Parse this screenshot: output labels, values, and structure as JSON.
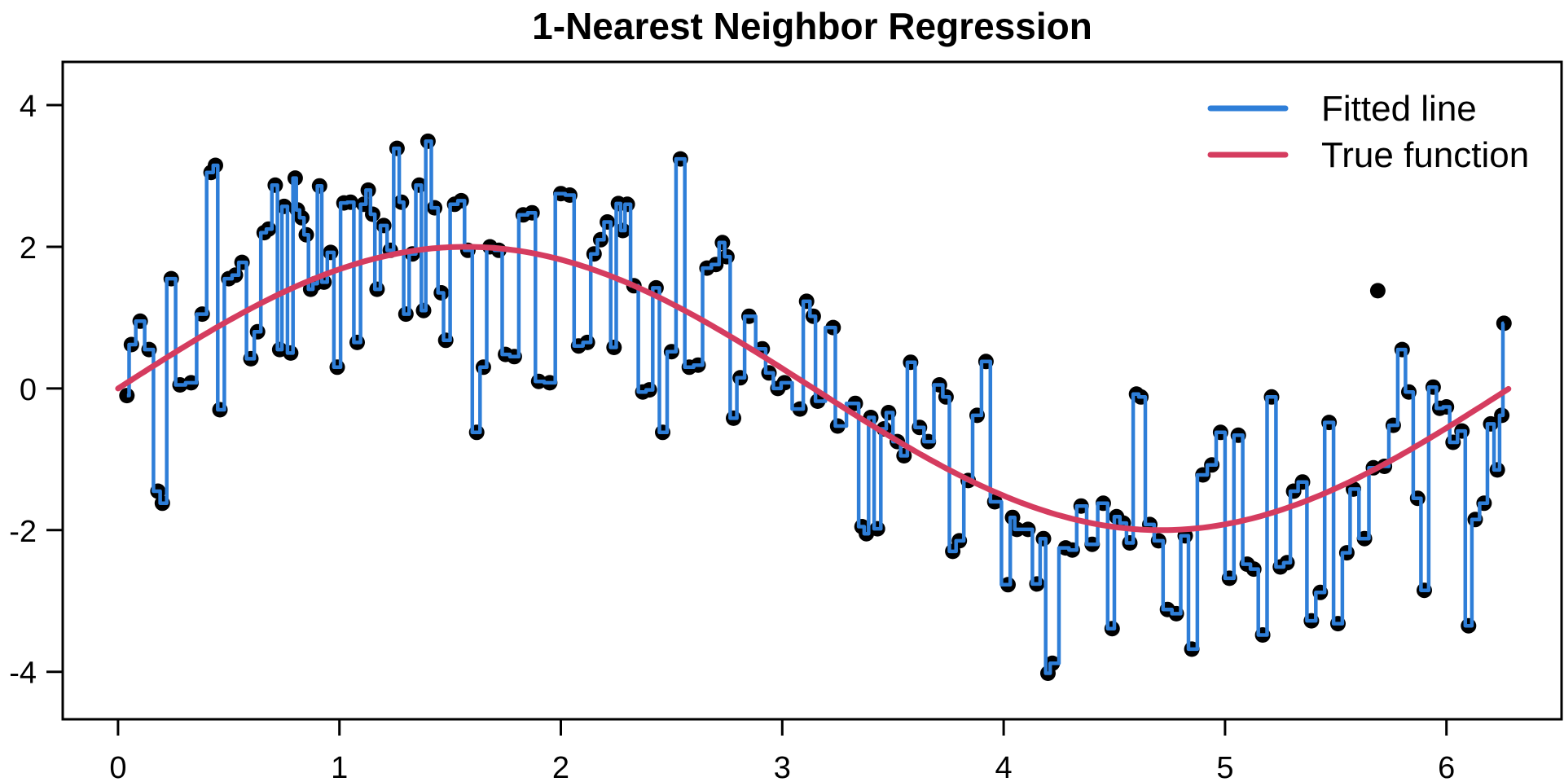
{
  "title": "1-Nearest Neighbor Regression",
  "colors": {
    "fitted_line": "#2e7ed8",
    "true_function": "#d53c5f",
    "points": "#000000",
    "axis": "#000000",
    "background": "#ffffff"
  },
  "chart_data": {
    "type": "line",
    "title": "1-Nearest Neighbor Regression",
    "xlabel": "",
    "ylabel": "",
    "xlim": [
      -0.25,
      6.52
    ],
    "ylim": [
      -4.67,
      4.61
    ],
    "x_ticks": [
      0,
      1,
      2,
      3,
      4,
      5,
      6
    ],
    "y_ticks": [
      -4,
      -2,
      0,
      2,
      4
    ],
    "grid": false,
    "legend": {
      "position": "top-right",
      "entries": [
        {
          "label": "Fitted line",
          "color": "#2e7ed8"
        },
        {
          "label": "True function",
          "color": "#d53c5f"
        }
      ]
    },
    "series": [
      {
        "name": "Training points",
        "type": "scatter",
        "color": "#000000",
        "marker_radius": 9.5,
        "points": [
          [
            0.04,
            -0.1
          ],
          [
            0.06,
            0.62
          ],
          [
            0.1,
            0.95
          ],
          [
            0.14,
            0.55
          ],
          [
            0.18,
            -1.45
          ],
          [
            0.2,
            -1.62
          ],
          [
            0.24,
            1.55
          ],
          [
            0.28,
            0.05
          ],
          [
            0.33,
            0.08
          ],
          [
            0.38,
            1.05
          ],
          [
            0.42,
            3.05
          ],
          [
            0.44,
            3.15
          ],
          [
            0.46,
            -0.3
          ],
          [
            0.5,
            1.55
          ],
          [
            0.53,
            1.6
          ],
          [
            0.56,
            1.78
          ],
          [
            0.6,
            0.42
          ],
          [
            0.63,
            0.8
          ],
          [
            0.66,
            2.2
          ],
          [
            0.68,
            2.25
          ],
          [
            0.71,
            2.87
          ],
          [
            0.73,
            0.55
          ],
          [
            0.75,
            2.57
          ],
          [
            0.78,
            0.5
          ],
          [
            0.8,
            2.97
          ],
          [
            0.81,
            2.52
          ],
          [
            0.83,
            2.41
          ],
          [
            0.85,
            2.17
          ],
          [
            0.87,
            1.4
          ],
          [
            0.89,
            1.48
          ],
          [
            0.91,
            2.86
          ],
          [
            0.93,
            1.5
          ],
          [
            0.96,
            1.92
          ],
          [
            0.99,
            0.3
          ],
          [
            1.02,
            2.62
          ],
          [
            1.05,
            2.63
          ],
          [
            1.08,
            0.65
          ],
          [
            1.11,
            2.6
          ],
          [
            1.13,
            2.8
          ],
          [
            1.15,
            2.46
          ],
          [
            1.17,
            1.4
          ],
          [
            1.2,
            2.3
          ],
          [
            1.23,
            1.95
          ],
          [
            1.26,
            3.39
          ],
          [
            1.28,
            2.63
          ],
          [
            1.3,
            1.05
          ],
          [
            1.33,
            1.9
          ],
          [
            1.36,
            2.87
          ],
          [
            1.38,
            1.1
          ],
          [
            1.4,
            3.49
          ],
          [
            1.43,
            2.55
          ],
          [
            1.46,
            1.35
          ],
          [
            1.48,
            0.68
          ],
          [
            1.52,
            2.6
          ],
          [
            1.55,
            2.65
          ],
          [
            1.58,
            1.95
          ],
          [
            1.62,
            -0.62
          ],
          [
            1.65,
            0.3
          ],
          [
            1.68,
            2.0
          ],
          [
            1.72,
            1.95
          ],
          [
            1.75,
            0.48
          ],
          [
            1.79,
            0.45
          ],
          [
            1.83,
            2.45
          ],
          [
            1.87,
            2.48
          ],
          [
            1.9,
            0.1
          ],
          [
            1.95,
            0.08
          ],
          [
            2.0,
            2.75
          ],
          [
            2.04,
            2.73
          ],
          [
            2.08,
            0.6
          ],
          [
            2.12,
            0.65
          ],
          [
            2.15,
            1.9
          ],
          [
            2.18,
            2.1
          ],
          [
            2.21,
            2.35
          ],
          [
            2.24,
            0.58
          ],
          [
            2.26,
            2.61
          ],
          [
            2.28,
            2.23
          ],
          [
            2.3,
            2.6
          ],
          [
            2.33,
            1.45
          ],
          [
            2.37,
            -0.05
          ],
          [
            2.4,
            -0.02
          ],
          [
            2.43,
            1.42
          ],
          [
            2.46,
            -0.62
          ],
          [
            2.5,
            0.52
          ],
          [
            2.54,
            3.24
          ],
          [
            2.58,
            0.3
          ],
          [
            2.62,
            0.33
          ],
          [
            2.66,
            1.7
          ],
          [
            2.7,
            1.75
          ],
          [
            2.73,
            2.06
          ],
          [
            2.75,
            1.86
          ],
          [
            2.78,
            -0.42
          ],
          [
            2.81,
            0.15
          ],
          [
            2.85,
            1.02
          ],
          [
            2.91,
            0.56
          ],
          [
            2.94,
            0.22
          ],
          [
            2.98,
            0.0
          ],
          [
            3.01,
            0.08
          ],
          [
            3.08,
            -0.29
          ],
          [
            3.11,
            1.23
          ],
          [
            3.14,
            1.02
          ],
          [
            3.16,
            -0.18
          ],
          [
            3.23,
            0.86
          ],
          [
            3.25,
            -0.53
          ],
          [
            3.33,
            -0.21
          ],
          [
            3.36,
            -1.95
          ],
          [
            3.38,
            -2.05
          ],
          [
            3.4,
            -0.41
          ],
          [
            3.43,
            -1.98
          ],
          [
            3.46,
            -0.57
          ],
          [
            3.48,
            -0.34
          ],
          [
            3.52,
            -0.75
          ],
          [
            3.55,
            -0.95
          ],
          [
            3.58,
            0.37
          ],
          [
            3.62,
            -0.55
          ],
          [
            3.66,
            -0.75
          ],
          [
            3.71,
            0.05
          ],
          [
            3.74,
            -0.12
          ],
          [
            3.77,
            -2.3
          ],
          [
            3.8,
            -2.15
          ],
          [
            3.84,
            -1.3
          ],
          [
            3.88,
            -0.38
          ],
          [
            3.92,
            0.38
          ],
          [
            3.96,
            -1.6
          ],
          [
            4.02,
            -2.77
          ],
          [
            4.04,
            -1.82
          ],
          [
            4.06,
            -1.99
          ],
          [
            4.11,
            -1.99
          ],
          [
            4.15,
            -2.76
          ],
          [
            4.18,
            -2.12
          ],
          [
            4.2,
            -4.02
          ],
          [
            4.22,
            -3.88
          ],
          [
            4.28,
            -2.25
          ],
          [
            4.31,
            -2.28
          ],
          [
            4.35,
            -1.66
          ],
          [
            4.4,
            -2.2
          ],
          [
            4.45,
            -1.62
          ],
          [
            4.49,
            -3.39
          ],
          [
            4.51,
            -1.81
          ],
          [
            4.54,
            -1.9
          ],
          [
            4.57,
            -2.18
          ],
          [
            4.6,
            -0.08
          ],
          [
            4.62,
            -0.12
          ],
          [
            4.66,
            -1.92
          ],
          [
            4.7,
            -2.15
          ],
          [
            4.74,
            -3.12
          ],
          [
            4.78,
            -3.18
          ],
          [
            4.82,
            -2.08
          ],
          [
            4.85,
            -3.68
          ],
          [
            4.9,
            -1.22
          ],
          [
            4.94,
            -1.08
          ],
          [
            4.98,
            -0.62
          ],
          [
            5.02,
            -2.68
          ],
          [
            5.06,
            -0.66
          ],
          [
            5.1,
            -2.48
          ],
          [
            5.13,
            -2.55
          ],
          [
            5.17,
            -3.48
          ],
          [
            5.21,
            -0.12
          ],
          [
            5.25,
            -2.52
          ],
          [
            5.28,
            -2.46
          ],
          [
            5.31,
            -1.45
          ],
          [
            5.35,
            -1.32
          ],
          [
            5.39,
            -3.28
          ],
          [
            5.43,
            -2.88
          ],
          [
            5.47,
            -0.48
          ],
          [
            5.51,
            -3.32
          ],
          [
            5.55,
            -2.32
          ],
          [
            5.58,
            -1.42
          ],
          [
            5.63,
            -2.12
          ],
          [
            5.67,
            -1.12
          ],
          [
            5.72,
            -1.1
          ],
          [
            5.76,
            -0.52
          ],
          [
            5.8,
            0.55
          ],
          [
            5.83,
            -0.05
          ],
          [
            5.87,
            -1.55
          ],
          [
            5.9,
            -2.85
          ],
          [
            5.94,
            0.02
          ],
          [
            5.97,
            -0.28
          ],
          [
            6.0,
            -0.26
          ],
          [
            6.03,
            -0.76
          ],
          [
            6.07,
            -0.6
          ],
          [
            6.1,
            -3.35
          ],
          [
            6.13,
            -1.85
          ],
          [
            6.17,
            -1.62
          ],
          [
            6.2,
            -0.5
          ],
          [
            6.23,
            -1.15
          ],
          [
            6.25,
            -0.38
          ],
          [
            6.26,
            0.92
          ]
        ],
        "extra_points_not_on_fit": [
          [
            5.69,
            1.38
          ]
        ]
      },
      {
        "name": "Fitted line",
        "type": "step-1nn",
        "color": "#2e7ed8",
        "line_width": 4.5,
        "derived_from": "Training points"
      },
      {
        "name": "True function",
        "type": "curve",
        "color": "#d53c5f",
        "line_width": 7,
        "expression": "y = 2*sin(x)",
        "amplitude": 2,
        "x_range": [
          0,
          6.283
        ]
      }
    ]
  }
}
